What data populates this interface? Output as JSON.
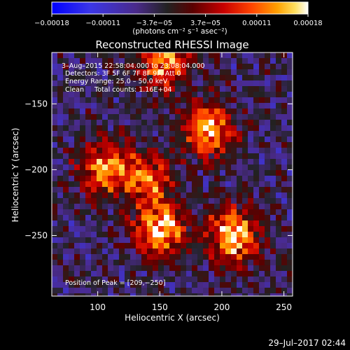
{
  "chart_data": {
    "type": "heatmap",
    "title": "Reconstructed RHESSI Image",
    "xlabel": "Heliocentric X (arcsec)",
    "ylabel": "Heliocentric Y (arcsec)",
    "xlim": [
      63,
      257
    ],
    "ylim": [
      -296,
      -111
    ],
    "x_ticks": [
      100,
      150,
      200,
      250
    ],
    "x_tick_labels": [
      "100",
      "150",
      "200",
      "250"
    ],
    "y_ticks": [
      -250,
      -200,
      -150
    ],
    "y_tick_labels": [
      "−250",
      "−200",
      "−150"
    ],
    "colorbar": {
      "range": [
        -0.00018,
        0.00018
      ],
      "tick_labels": [
        "−0.00018",
        "−0.00011",
        "−3.7e−05",
        "3.7e−05",
        "0.00011",
        "0.00018"
      ],
      "unit_label": "(photons cm⁻² s⁻¹ asec⁻²)",
      "colormap": "rainbow-to-hot"
    },
    "annotations": [
      "3–Aug–2015 22:58:04.000 to 23:08:04.000",
      "Detectors: 3F 5F 6F 7F 8F 9F, Att 0",
      "Energy Range: 25.0 – 50.0 keV",
      "Clean     Total counts: 1.16E+04"
    ],
    "peak_label": "Position of Peak = [209,−250]",
    "peak_position": [
      209,
      -250
    ],
    "sources": [
      {
        "x": 150,
        "y": -245,
        "peak": 0.00018
      },
      {
        "x": 209,
        "y": -250,
        "peak": 0.00018
      },
      {
        "x": 190,
        "y": -170,
        "peak": 0.00016
      },
      {
        "x": 105,
        "y": -200,
        "peak": 0.00014
      },
      {
        "x": 140,
        "y": -205,
        "peak": 0.00013
      },
      {
        "x": 153,
        "y": -118,
        "peak": 0.00015
      }
    ],
    "background_level": -4e-05
  },
  "footer": {
    "timestamp": "29–Jul–2017 02:44"
  }
}
